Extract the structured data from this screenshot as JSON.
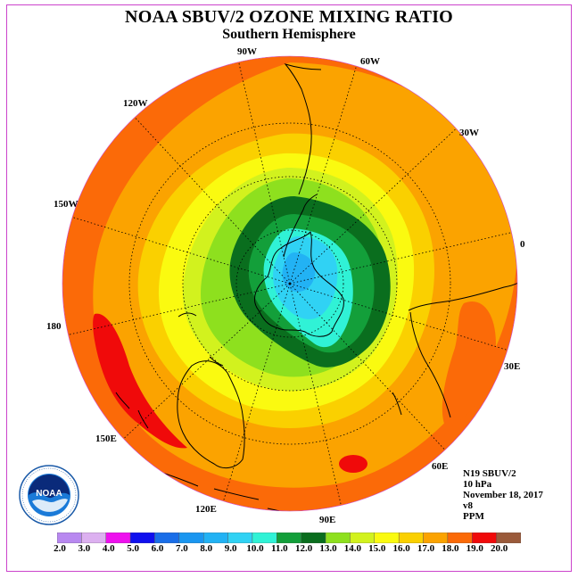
{
  "title": "NOAA SBUV/2 OZONE MIXING RATIO",
  "subtitle": "Southern Hemisphere",
  "longitude_labels": [
    "90W",
    "60W",
    "30W",
    "0",
    "30E",
    "60E",
    "90E",
    "120E",
    "150E",
    "180",
    "150W",
    "120W"
  ],
  "info": {
    "satellite": "N19 SBUV/2",
    "level": "10 hPa",
    "date": "November 18, 2017",
    "version": "v8",
    "units": "PPM"
  },
  "logo_text": "NOAA",
  "colorbar": {
    "ticks": [
      "2.0",
      "3.0",
      "4.0",
      "5.0",
      "6.0",
      "7.0",
      "8.0",
      "9.0",
      "10.0",
      "11.0",
      "12.0",
      "13.0",
      "14.0",
      "15.0",
      "16.0",
      "17.0",
      "18.0",
      "19.0",
      "20.0"
    ],
    "colors": [
      "#b888f0",
      "#dcb0f0",
      "#ee10ee",
      "#1010ee",
      "#1a6ee8",
      "#1a96f0",
      "#22b2f4",
      "#30d2f4",
      "#30f2d6",
      "#139f3a",
      "#0a6e1e",
      "#8ee01e",
      "#d2f21e",
      "#fafa10",
      "#fad000",
      "#fba300",
      "#fb6a08",
      "#f00a0a",
      "#9a5a3a"
    ]
  },
  "map_colors": {
    "ocean_fill": "#fb6a08",
    "edge": "#fb6a08"
  }
}
